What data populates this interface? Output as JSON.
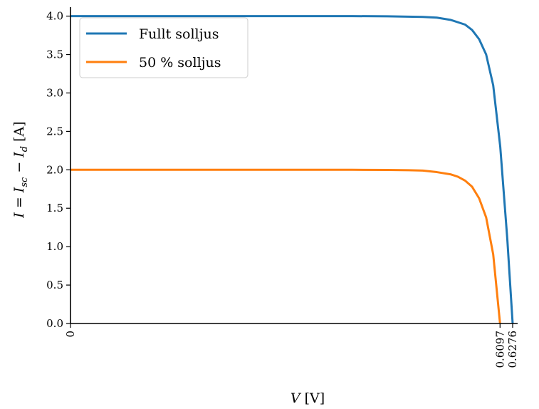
{
  "chart_data": {
    "type": "line",
    "xlabel": "V [V]",
    "ylabel": "I = I_sc − I_d [A]",
    "xlim": [
      0,
      0.665
    ],
    "ylim": [
      0,
      4.0
    ],
    "x_ticks": [
      "0",
      "0.6097",
      "0.6276"
    ],
    "x_tick_values": [
      0,
      0.6097,
      0.6276
    ],
    "y_ticks": [
      "0.0",
      "0.5",
      "1.0",
      "1.5",
      "2.0",
      "2.5",
      "3.0",
      "3.5",
      "4.0"
    ],
    "y_tick_values": [
      0,
      0.5,
      1.0,
      1.5,
      2.0,
      2.5,
      3.0,
      3.5,
      4.0
    ],
    "legend_position": "top-left",
    "series": [
      {
        "name": "Fullt solljus",
        "color": "#1f77b4",
        "isc": 4.0,
        "voc": 0.6276,
        "x": [
          0,
          0.1,
          0.2,
          0.3,
          0.4,
          0.45,
          0.5,
          0.52,
          0.54,
          0.56,
          0.57,
          0.58,
          0.59,
          0.6,
          0.61,
          0.62,
          0.6276
        ],
        "y": [
          4.0,
          4.0,
          4.0,
          4.0,
          4.0,
          3.998,
          3.99,
          3.98,
          3.95,
          3.89,
          3.82,
          3.7,
          3.5,
          3.1,
          2.3,
          1.1,
          0.0
        ]
      },
      {
        "name": "50 % solljus",
        "color": "#ff7f0e",
        "isc": 2.0,
        "voc": 0.6097,
        "x": [
          0,
          0.1,
          0.2,
          0.3,
          0.4,
          0.45,
          0.48,
          0.5,
          0.52,
          0.54,
          0.55,
          0.56,
          0.57,
          0.58,
          0.59,
          0.6,
          0.6097
        ],
        "y": [
          2.0,
          2.0,
          2.0,
          2.0,
          2.0,
          1.998,
          1.995,
          1.99,
          1.97,
          1.94,
          1.91,
          1.86,
          1.78,
          1.63,
          1.38,
          0.9,
          0.0
        ]
      }
    ]
  }
}
